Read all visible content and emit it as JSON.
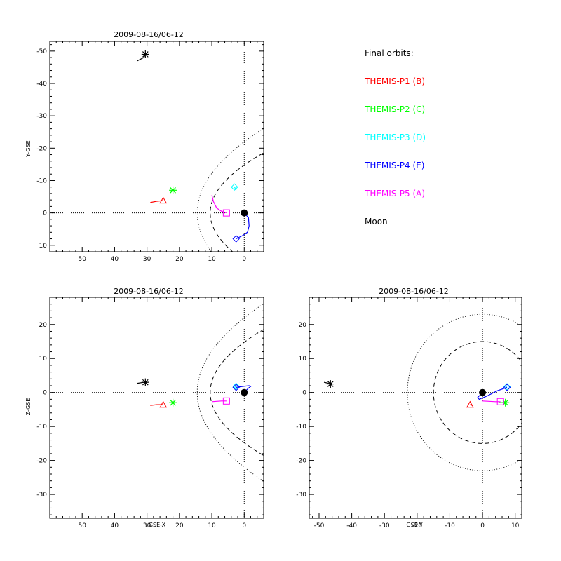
{
  "chart_data": [
    {
      "id": "xy",
      "type": "scatter",
      "title": "2009-08-16/06-12",
      "xlabel": "",
      "ylabel": "Y-GSE",
      "xlim": [
        60,
        -6
      ],
      "ylim": [
        12,
        -53
      ],
      "x_ticks": [
        50,
        40,
        30,
        20,
        10,
        0
      ],
      "y_ticks": [
        -50,
        -40,
        -30,
        -20,
        -10,
        0,
        10
      ],
      "tick_labels_x": [
        "50",
        "40",
        "30",
        "20",
        "10",
        "0"
      ],
      "tick_labels_y": [
        "-50",
        "-40",
        "-30",
        "-20",
        "-10",
        "0",
        "10"
      ],
      "boundaries": true,
      "guide_lines": true,
      "series": [
        {
          "name": "THEMIS-P1 (B)",
          "color": "#ff0000",
          "marker": "triangle",
          "x": [
            29,
            27,
            25
          ],
          "y": [
            -3.2,
            -3.6,
            -3.8
          ]
        },
        {
          "name": "THEMIS-P2 (C)",
          "color": "#00ff00",
          "marker": "asterisk",
          "x": [
            22.5,
            22
          ],
          "y": [
            -7,
            -7
          ]
        },
        {
          "name": "THEMIS-P3 (D)",
          "color": "#00ffff",
          "marker": "diamond",
          "x": [
            2.5,
            3
          ],
          "y": [
            -7,
            -8
          ]
        },
        {
          "name": "THEMIS-P4 (E)",
          "color": "#0000ff",
          "marker": "diamond",
          "x": [
            0,
            -1.3,
            -1.5,
            -1,
            0.5,
            2.5
          ],
          "y": [
            0,
            1.5,
            4,
            6,
            7,
            8
          ]
        },
        {
          "name": "THEMIS-P5 (A)",
          "color": "#ff00ff",
          "marker": "square",
          "x": [
            10,
            9.5,
            8.5,
            7,
            5.5
          ],
          "y": [
            -5.5,
            -3.5,
            -1.5,
            -0.5,
            0
          ]
        },
        {
          "name": "Moon",
          "color": "#000000",
          "marker": "asterisk",
          "x": [
            33,
            31,
            30.5
          ],
          "y": [
            -47,
            -48,
            -49
          ]
        }
      ]
    },
    {
      "id": "xz",
      "type": "scatter",
      "title": "2009-08-16/06-12",
      "xlabel": "GSE-X",
      "ylabel": "Z-GSE",
      "xlim": [
        60,
        -6
      ],
      "ylim": [
        -37,
        28
      ],
      "x_ticks": [
        50,
        40,
        30,
        20,
        10,
        0
      ],
      "y_ticks": [
        -30,
        -20,
        -10,
        0,
        10,
        20
      ],
      "tick_labels_x": [
        "50",
        "40",
        "30",
        "20",
        "10",
        "0"
      ],
      "tick_labels_y": [
        "-30",
        "-20",
        "-10",
        "0",
        "10",
        "20"
      ],
      "boundaries": true,
      "guide_lines": true,
      "series": [
        {
          "name": "THEMIS-P1 (B)",
          "color": "#ff0000",
          "marker": "triangle",
          "x": [
            29,
            27,
            25
          ],
          "y": [
            -3.8,
            -3.6,
            -3.6
          ]
        },
        {
          "name": "THEMIS-P2 (C)",
          "color": "#00ff00",
          "marker": "asterisk",
          "x": [
            22.5,
            22
          ],
          "y": [
            -3,
            -3
          ]
        },
        {
          "name": "THEMIS-P3 (D)",
          "color": "#00ffff",
          "marker": "diamond",
          "x": [
            3,
            2.5
          ],
          "y": [
            1.5,
            1.8
          ]
        },
        {
          "name": "THEMIS-P4 (E)",
          "color": "#0000ff",
          "marker": "diamond",
          "x": [
            0,
            -1.2,
            -2,
            -1.5,
            0.5,
            2.5
          ],
          "y": [
            0,
            1.2,
            1.8,
            2,
            1.8,
            1.5
          ]
        },
        {
          "name": "THEMIS-P5 (A)",
          "color": "#ff00ff",
          "marker": "square",
          "x": [
            10,
            8.5,
            7,
            5.5
          ],
          "y": [
            -2.7,
            -2.6,
            -2.5,
            -2.5
          ]
        },
        {
          "name": "Moon",
          "color": "#000000",
          "marker": "asterisk",
          "x": [
            33,
            31,
            30.5
          ],
          "y": [
            2.7,
            3,
            3
          ]
        }
      ]
    },
    {
      "id": "yz",
      "type": "scatter",
      "title": "2009-08-16/06-12",
      "xlabel": "GSE-Y",
      "ylabel": "",
      "xlim": [
        -53,
        12
      ],
      "ylim": [
        -37,
        28
      ],
      "x_ticks": [
        -50,
        -40,
        -30,
        -20,
        -10,
        0,
        10
      ],
      "y_ticks": [
        -30,
        -20,
        -10,
        0,
        10,
        20
      ],
      "tick_labels_x": [
        "-50",
        "-40",
        "-30",
        "-20",
        "-10",
        "0",
        "10"
      ],
      "tick_labels_y": [
        "-30",
        "-20",
        "-10",
        "0",
        "10",
        "20"
      ],
      "boundaries": true,
      "guide_lines": true,
      "series": [
        {
          "name": "THEMIS-P1 (B)",
          "color": "#ff0000",
          "marker": "triangle",
          "x": [
            -3.2,
            -3.6,
            -3.8
          ],
          "y": [
            -3.8,
            -3.6,
            -3.6
          ]
        },
        {
          "name": "THEMIS-P2 (C)",
          "color": "#00ff00",
          "marker": "asterisk",
          "x": [
            5,
            6.5,
            7
          ],
          "y": [
            -3,
            -3,
            -3
          ]
        },
        {
          "name": "THEMIS-P3 (D)",
          "color": "#00ffff",
          "marker": "diamond",
          "x": [
            7,
            7.5
          ],
          "y": [
            1.5,
            1.7
          ]
        },
        {
          "name": "THEMIS-P4 (E)",
          "color": "#0000ff",
          "marker": "diamond",
          "x": [
            0,
            -1.5,
            -1,
            1.5,
            4.5,
            7.5
          ],
          "y": [
            0,
            -1.5,
            -2,
            -1,
            0.5,
            1.5
          ]
        },
        {
          "name": "THEMIS-P5 (A)",
          "color": "#ff00ff",
          "marker": "square",
          "x": [
            0,
            2,
            4,
            5.5
          ],
          "y": [
            -2.5,
            -2.6,
            -2.7,
            -2.7
          ]
        },
        {
          "name": "Moon",
          "color": "#000000",
          "marker": "asterisk",
          "x": [
            -48.5,
            -47.5,
            -46.5
          ],
          "y": [
            3,
            2.8,
            2.5
          ]
        }
      ]
    }
  ],
  "legend": {
    "title": "Final orbits:",
    "items": [
      {
        "label": "THEMIS-P1 (B)",
        "color": "#ff0000"
      },
      {
        "label": "THEMIS-P2 (C)",
        "color": "#00ff00"
      },
      {
        "label": "THEMIS-P3 (D)",
        "color": "#00ffff"
      },
      {
        "label": "THEMIS-P4 (E)",
        "color": "#0000ff"
      },
      {
        "label": "THEMIS-P5 (A)",
        "color": "#ff00ff"
      },
      {
        "label": "Moon",
        "color": "#000000"
      }
    ]
  },
  "earth": {
    "x": 0,
    "y": 0,
    "color": "#000000"
  }
}
